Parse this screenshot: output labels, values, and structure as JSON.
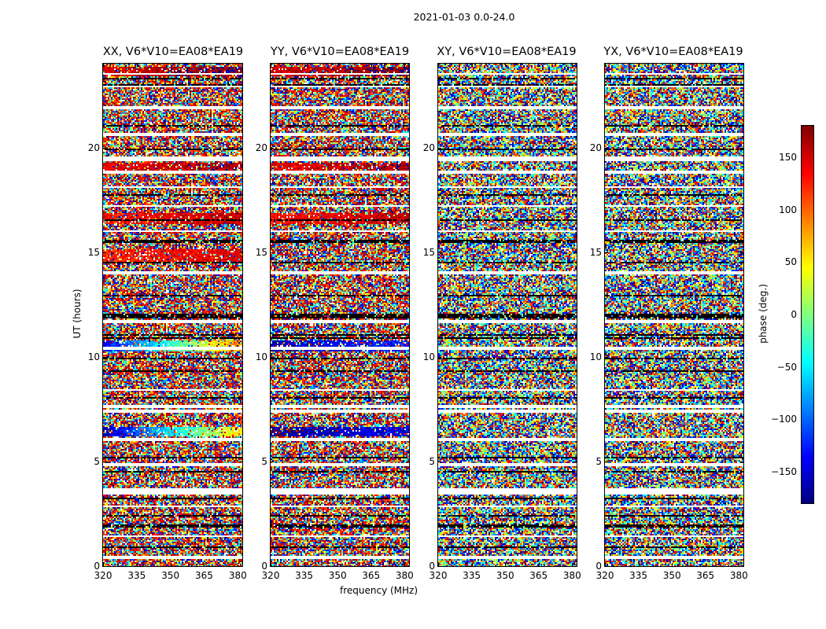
{
  "chart_data": {
    "type": "heatmap",
    "suptitle": "2021-01-03 0.0-24.0",
    "xlabel": "frequency (MHz)",
    "ylabel": "UT (hours)",
    "xlim": [
      320,
      382
    ],
    "ylim": [
      0,
      24
    ],
    "xticks": [
      320,
      335,
      350,
      365,
      380
    ],
    "yticks": [
      0,
      5,
      10,
      15,
      20
    ],
    "colorbar": {
      "label": "phase (deg.)",
      "range": [
        -180,
        180
      ],
      "ticks": [
        150,
        100,
        50,
        0,
        -50,
        -100,
        -150
      ],
      "tick_labels": [
        "150",
        "100",
        "50",
        "0",
        "−50",
        "−100",
        "−150"
      ],
      "colormap": "jet"
    },
    "panels": [
      {
        "title": "XX, V6*V10=EA08*EA19",
        "coherent": true
      },
      {
        "title": "YY, V6*V10=EA08*EA19",
        "coherent": true
      },
      {
        "title": "XY, V6*V10=EA08*EA19",
        "coherent": false
      },
      {
        "title": "YX, V6*V10=EA08*EA19",
        "coherent": false
      }
    ],
    "flagged_white_gaps_hours": [
      0.45,
      1.45,
      2.9,
      3.55,
      3.7,
      4.9,
      6.1,
      7.45,
      7.65,
      8.45,
      10.45,
      11.7,
      14.05,
      16.05,
      17.25,
      18.15,
      18.85,
      19.45,
      19.55,
      20.65,
      21.95,
      22.95,
      23.55
    ],
    "black_stripes_hours": [
      0.95,
      1.95,
      2.45,
      3.25,
      4.55,
      5.25,
      8.05,
      9.35,
      9.95,
      10.95,
      11.05,
      11.95,
      12.05,
      12.95,
      14.55,
      15.55,
      16.55,
      17.75,
      19.95,
      21.05,
      23.05,
      23.3
    ],
    "coherent_features": [
      {
        "panels": [
          "XX"
        ],
        "ut_range": [
          6.2,
          6.7
        ],
        "phase_trend_deg": [
          -160,
          60
        ]
      },
      {
        "panels": [
          "YY"
        ],
        "ut_range": [
          6.2,
          6.7
        ],
        "phase_trend_deg": [
          -170,
          -140
        ]
      },
      {
        "panels": [
          "XX"
        ],
        "ut_range": [
          10.3,
          10.8
        ],
        "phase_trend_deg": [
          -140,
          90
        ]
      },
      {
        "panels": [
          "YY"
        ],
        "ut_range": [
          10.3,
          10.8
        ],
        "phase_trend_deg": [
          -160,
          -120
        ]
      },
      {
        "panels": [
          "XX"
        ],
        "ut_range": [
          14.6,
          15.2
        ],
        "phase_trend_deg": [
          120,
          150
        ]
      },
      {
        "panels": [
          "XX",
          "YY"
        ],
        "ut_range": [
          16.4,
          16.9
        ],
        "phase_trend_deg": [
          130,
          160
        ]
      },
      {
        "panels": [
          "XX",
          "YY"
        ],
        "ut_range": [
          18.9,
          19.3
        ],
        "phase_trend_deg": [
          140,
          170
        ]
      },
      {
        "panels": [
          "XX",
          "YY"
        ],
        "ut_range": [
          23.4,
          23.9
        ],
        "phase_trend_deg": [
          150,
          180
        ]
      }
    ]
  }
}
